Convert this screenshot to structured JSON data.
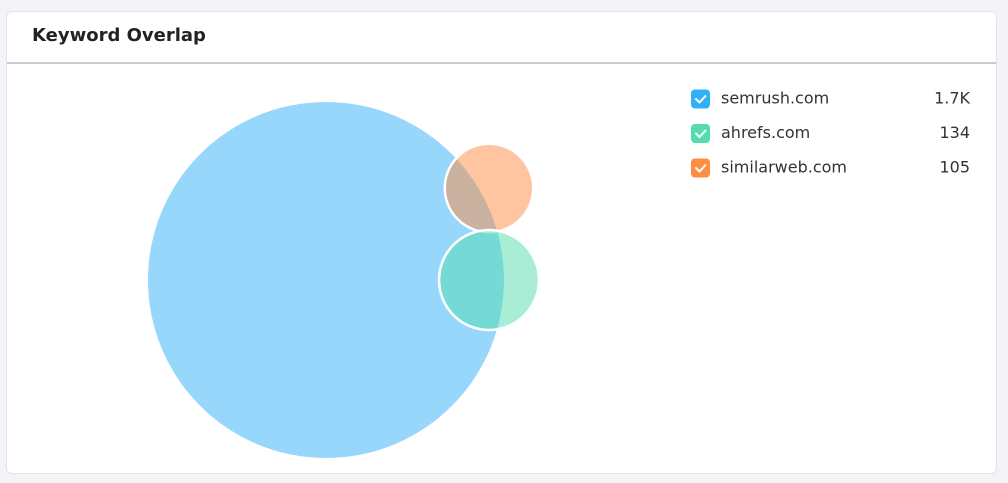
{
  "chart_data": {
    "type": "venn",
    "title": "Keyword Overlap",
    "series": [
      {
        "name": "semrush.com",
        "color": "#2fb0f7",
        "value": 1700,
        "value_label": "1.7K"
      },
      {
        "name": "ahrefs.com",
        "color": "#54dcb0",
        "value": 134,
        "value_label": "134"
      },
      {
        "name": "similarweb.com",
        "color": "#ff8c43",
        "value": 105,
        "value_label": "105"
      }
    ]
  }
}
